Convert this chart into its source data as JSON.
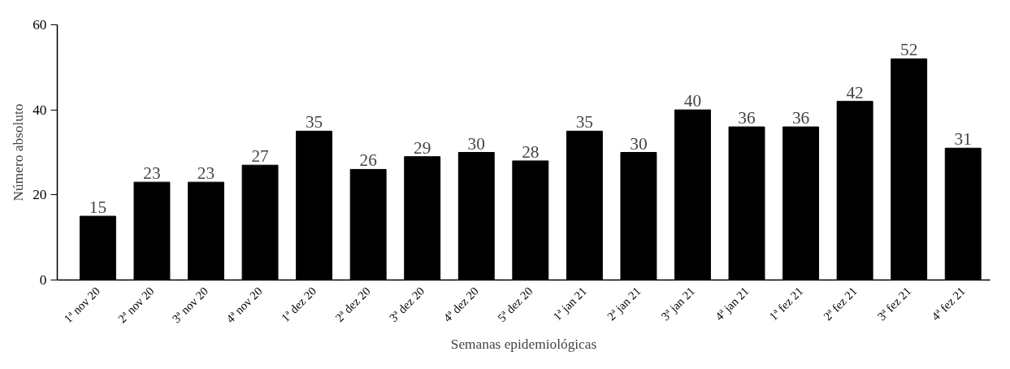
{
  "chart_data": {
    "type": "bar",
    "xlabel": "Semanas epidemiológicas",
    "ylabel": "Número absoluto",
    "categories": [
      "1ª nov 20",
      "2ª nov 20",
      "3ª nov 20",
      "4ª nov 20",
      "1ª dez 20",
      "2ª dez 20",
      "3ª dez 20",
      "4ª dez 20",
      "5ª dez 20",
      "1ª jan 21",
      "2ª jan 21",
      "3ª jan 21",
      "4ª jan 21",
      "1ª fez 21",
      "2ª fez 21",
      "3ª fez 21",
      "4ª fez 21"
    ],
    "values": [
      15,
      23,
      23,
      27,
      35,
      26,
      29,
      30,
      28,
      35,
      30,
      40,
      36,
      36,
      42,
      52,
      31
    ],
    "color": "#000000",
    "ylim": [
      0,
      60
    ],
    "yticks": [
      0,
      20,
      40,
      60
    ],
    "grid": false,
    "data_labels": true
  }
}
